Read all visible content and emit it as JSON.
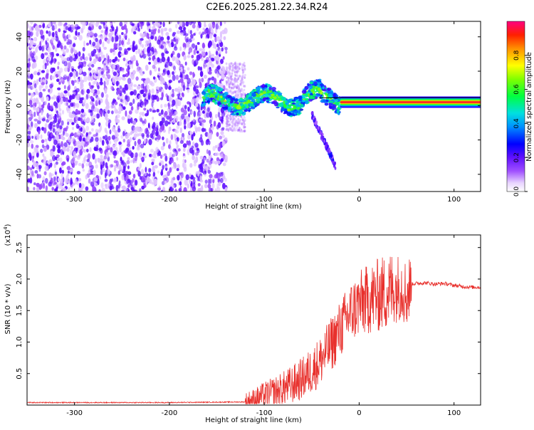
{
  "title": "C2E6.2025.281.22.34.R24",
  "chart_data": [
    {
      "type": "heatmap",
      "xlabel": "Height of straight line (km)",
      "ylabel": "Frequency (Hz)",
      "xlim": [
        -350,
        128
      ],
      "ylim": [
        -50,
        49
      ],
      "xticks": [
        -300,
        -200,
        -100,
        0,
        100
      ],
      "xtick_labels": [
        "-300",
        "-200",
        "-100",
        "0",
        "100"
      ],
      "yticks": [
        -40,
        -20,
        0,
        20,
        40
      ],
      "ytick_labels": [
        "-40",
        "-20",
        "0",
        "20",
        "40"
      ],
      "colorbar": {
        "label": "Normalized spectral amplitude",
        "range": [
          0,
          1
        ],
        "ticks": [
          0.0,
          0.2,
          0.4,
          0.6,
          0.8
        ],
        "tick_labels": [
          "0.0",
          "0.2",
          "0.4",
          "0.6",
          "0.8"
        ],
        "colormap": "rainbow"
      },
      "regions": [
        {
          "name": "noise",
          "x": [
            -350,
            -140
          ],
          "freq_range": [
            -50,
            49
          ],
          "amplitude": 0.1
        },
        {
          "name": "doppler-trace",
          "x": [
            -165,
            -20
          ],
          "freq_center": 3,
          "amplitude": 0.45
        },
        {
          "name": "diverging-tail",
          "x": [
            -50,
            -25
          ],
          "freq_from": -5,
          "freq_to": -35,
          "amplitude": 0.15
        },
        {
          "name": "carrier-line",
          "x": [
            -20,
            128
          ],
          "freq_center": 2,
          "amplitude": 0.95
        }
      ]
    },
    {
      "type": "line",
      "xlabel": "Height of straight line (km)",
      "ylabel": "SNR (10 * v/v)",
      "multiplier_label": "(x10",
      "multiplier_exp": "4",
      "xlim": [
        -350,
        128
      ],
      "ylim": [
        0,
        2.7
      ],
      "xticks": [
        -300,
        -200,
        -100,
        0,
        100
      ],
      "xtick_labels": [
        "-300",
        "-200",
        "-100",
        "0",
        "100"
      ],
      "yticks": [
        0.5,
        1.0,
        1.5,
        2.0,
        2.5
      ],
      "ytick_labels": [
        "0.5",
        "1.0",
        "1.5",
        "2.0",
        "2.5"
      ],
      "color": "#e8302c",
      "series": [
        {
          "name": "SNR",
          "x": [
            -350,
            -300,
            -200,
            -120,
            -110,
            -100,
            -90,
            -80,
            -70,
            -60,
            -50,
            -40,
            -30,
            -20,
            -10,
            0,
            10,
            20,
            30,
            40,
            45,
            50,
            55,
            60,
            70,
            80,
            90,
            100,
            110,
            120,
            128
          ],
          "y": [
            0.04,
            0.04,
            0.04,
            0.05,
            0.09,
            0.16,
            0.2,
            0.26,
            0.33,
            0.42,
            0.55,
            0.72,
            0.95,
            1.2,
            1.45,
            1.6,
            1.68,
            1.74,
            1.8,
            1.86,
            1.9,
            1.75,
            1.92,
            1.93,
            1.94,
            1.92,
            1.93,
            1.9,
            1.88,
            1.87,
            1.87
          ]
        }
      ]
    }
  ]
}
